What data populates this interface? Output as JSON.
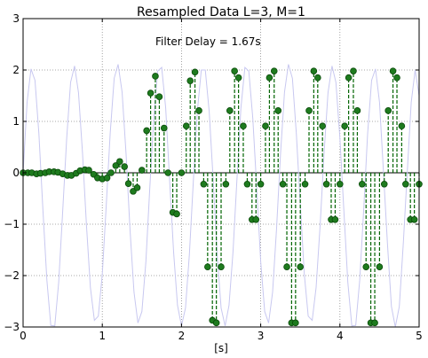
{
  "chart_data": {
    "type": "line",
    "title": "Resampled Data L=3, M=1",
    "annotation": "Filter Delay = 1.67s",
    "xlabel": "[s]",
    "ylabel": "",
    "xlim": [
      0,
      5
    ],
    "ylim": [
      -3,
      3
    ],
    "x_ticks": [
      0,
      1,
      2,
      3,
      4,
      5
    ],
    "y_ticks": [
      -3,
      -2,
      -1,
      0,
      1,
      2,
      3
    ],
    "x_tick_labels": [
      "0",
      "1",
      "2",
      "3",
      "4",
      "5"
    ],
    "y_tick_labels": [
      "−3",
      "−2",
      "−1",
      "0",
      "1",
      "2",
      "3"
    ],
    "grid": true,
    "colors": {
      "original_signal": "#c8c8f0",
      "stems": "#006400",
      "markers": "#1e7b1e",
      "marker_edge": "#0a4a0a",
      "baseline": "#000000"
    },
    "series": [
      {
        "kind": "line",
        "x": [
          0.0,
          0.05,
          0.1,
          0.15,
          0.2,
          0.25,
          0.3,
          0.35,
          0.4,
          0.45,
          0.5,
          0.55,
          0.6,
          0.65,
          0.7,
          0.75,
          0.8,
          0.85,
          0.9,
          0.95,
          1.0,
          1.05,
          1.1,
          1.15,
          1.2,
          1.25,
          1.3,
          1.35,
          1.4,
          1.45,
          1.5,
          1.55,
          1.6,
          1.65,
          1.7,
          1.75,
          1.8,
          1.85,
          1.9,
          1.95,
          2.0,
          2.05,
          2.1,
          2.15,
          2.2,
          2.25,
          2.3,
          2.35,
          2.4,
          2.45,
          2.5,
          2.55,
          2.6,
          2.65,
          2.7,
          2.75,
          2.8,
          2.85,
          2.9,
          2.95,
          3.0,
          3.05,
          3.1,
          3.15,
          3.2,
          3.25,
          3.3,
          3.35,
          3.4,
          3.45,
          3.5,
          3.55,
          3.6,
          3.65,
          3.7,
          3.75,
          3.8,
          3.85,
          3.9,
          3.95,
          4.0,
          4.05,
          4.1,
          4.15,
          4.2,
          4.25,
          4.3,
          4.35,
          4.4,
          4.45,
          4.5,
          4.55,
          4.6,
          4.65,
          4.7,
          4.75,
          4.8,
          4.85,
          4.9,
          4.95,
          5.0
        ],
        "y": [
          0.0,
          1.37,
          2.02,
          1.8,
          0.76,
          -0.71,
          -2.09,
          -2.97,
          -2.98,
          -2.13,
          -0.75,
          0.67,
          1.76,
          2.08,
          1.56,
          0.39,
          -1.03,
          -2.23,
          -2.87,
          -2.79,
          -1.97,
          -0.62,
          0.77,
          1.84,
          2.11,
          1.57,
          0.36,
          -1.1,
          -2.32,
          -2.92,
          -2.7,
          -1.73,
          -0.29,
          1.06,
          1.98,
          2.05,
          1.26,
          -0.14,
          -1.54,
          -2.58,
          -2.98,
          -2.63,
          -1.58,
          -0.14,
          1.19,
          2.0,
          2.0,
          1.19,
          -0.14,
          -1.58,
          -2.63,
          -2.98,
          -2.58,
          -1.54,
          -0.14,
          1.26,
          2.05,
          1.98,
          1.06,
          -0.29,
          -1.73,
          -2.7,
          -2.92,
          -2.32,
          -1.1,
          0.36,
          1.57,
          2.11,
          1.84,
          0.77,
          -0.62,
          -1.97,
          -2.79,
          -2.87,
          -2.23,
          -1.03,
          0.39,
          1.56,
          2.08,
          1.76,
          0.67,
          -0.75,
          -2.13,
          -2.98,
          -2.97,
          -2.09,
          -0.71,
          0.76,
          1.8,
          2.02,
          1.37,
          0.0,
          -1.37,
          -2.6,
          -3.0,
          -2.6,
          -1.37,
          0.0,
          1.37,
          2.0,
          1.5
        ]
      },
      {
        "kind": "stem",
        "x": [
          0.0,
          0.06,
          0.11,
          0.17,
          0.22,
          0.28,
          0.33,
          0.39,
          0.44,
          0.5,
          0.56,
          0.61,
          0.67,
          0.72,
          0.78,
          0.83,
          0.89,
          0.94,
          1.0,
          1.06,
          1.11,
          1.17,
          1.22,
          1.28,
          1.33,
          1.39,
          1.44,
          1.5,
          1.56,
          1.61,
          1.67,
          1.72,
          1.78,
          1.83,
          1.89,
          1.94,
          2.0,
          2.06,
          2.11,
          2.17,
          2.22,
          2.28,
          2.33,
          2.39,
          2.44,
          2.5,
          2.56,
          2.61,
          2.67,
          2.72,
          2.78,
          2.83,
          2.89,
          2.94,
          3.0,
          3.06,
          3.11,
          3.17,
          3.22,
          3.28,
          3.33,
          3.39,
          3.44,
          3.5,
          3.56,
          3.61,
          3.67,
          3.72,
          3.78,
          3.83,
          3.89,
          3.94,
          4.0,
          4.06,
          4.11,
          4.17,
          4.22,
          4.28,
          4.33,
          4.39,
          4.44,
          4.5,
          4.56,
          4.61,
          4.67,
          4.72,
          4.78,
          4.83,
          4.89,
          4.94,
          5.0
        ],
        "y": [
          0.0,
          0.0,
          0.0,
          -0.02,
          -0.01,
          0.0,
          0.02,
          0.02,
          0.01,
          -0.02,
          -0.05,
          -0.05,
          -0.01,
          0.04,
          0.06,
          0.05,
          -0.03,
          -0.1,
          -0.12,
          -0.1,
          0.0,
          0.14,
          0.22,
          0.12,
          -0.21,
          -0.36,
          -0.29,
          0.05,
          0.82,
          1.55,
          1.88,
          1.48,
          0.87,
          0.0,
          -0.77,
          -0.8,
          0.0,
          0.91,
          1.79,
          1.96,
          1.21,
          -0.22,
          -1.83,
          -2.87,
          -2.92,
          -1.83,
          -0.22,
          1.21,
          1.98,
          1.85,
          0.91,
          -0.22,
          -0.91,
          -0.91,
          -0.22,
          0.91,
          1.85,
          1.98,
          1.21,
          -0.22,
          -1.83,
          -2.92,
          -2.92,
          -1.83,
          -0.22,
          1.21,
          1.98,
          1.85,
          0.91,
          -0.22,
          -0.91,
          -0.91,
          -0.22,
          0.91,
          1.85,
          1.98,
          1.21,
          -0.22,
          -1.83,
          -2.92,
          -2.92,
          -1.83,
          -0.22,
          1.21,
          1.98,
          1.85,
          0.91,
          -0.22,
          -0.91,
          -0.91,
          -0.22
        ]
      }
    ]
  }
}
